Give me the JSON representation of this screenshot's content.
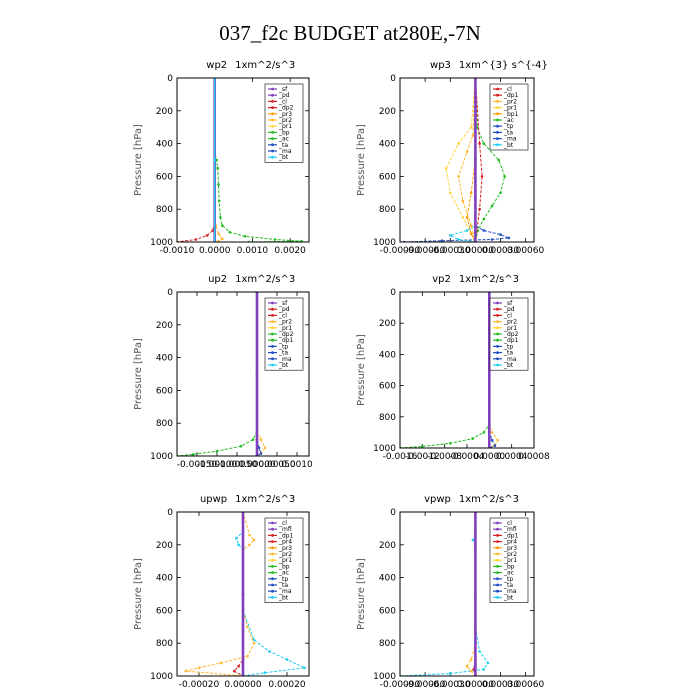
{
  "figure_title": "037_f2c  BUDGET at280E,-7N",
  "chart_data": [
    {
      "type": "line",
      "title": "wp2",
      "units": "1xm^2/s^3",
      "ylabel": "Pressure [hPa]",
      "ylim": [
        1000,
        0
      ],
      "yticks": [
        0,
        200,
        400,
        600,
        800,
        1000
      ],
      "xlim": [
        -0.001,
        0.0025
      ],
      "xtick_values": [
        -0.001,
        0,
        0.001,
        0.002
      ],
      "xtick_labels": [
        "-0.0010",
        "0.0000",
        "0.0010",
        "0.0020"
      ],
      "grid": false,
      "legend_position": "top-right",
      "legend": [
        {
          "label": "_sf",
          "color": "#7f3fbf"
        },
        {
          "label": "_pd",
          "color": "#7f3fbf"
        },
        {
          "label": "_cl",
          "color": "#d42020"
        },
        {
          "label": "_dp2",
          "color": "#d42020"
        },
        {
          "label": "_pr3",
          "color": "#ff9900"
        },
        {
          "label": "_pr2",
          "color": "#ffb833"
        },
        {
          "label": "_pr1",
          "color": "#ffd23c"
        },
        {
          "label": "_bp",
          "color": "#22bb22"
        },
        {
          "label": "_ac",
          "color": "#22bb22"
        },
        {
          "label": "_ta",
          "color": "#1f4fbf"
        },
        {
          "label": "_ma",
          "color": "#1f4fbf"
        },
        {
          "label": "_bt",
          "color": "#22ccee"
        }
      ],
      "series": [
        {
          "color": "#22bb22",
          "x": [
            0,
            0,
            0,
            5e-05,
            8e-05,
            0.0001,
            0.00012,
            0.00015,
            0.0002,
            0.0004,
            0.0008,
            0.0016,
            0.0023,
            0.0009
          ],
          "y": [
            0,
            300,
            450,
            500,
            550,
            650,
            750,
            850,
            900,
            940,
            965,
            985,
            995,
            1000
          ]
        },
        {
          "color": "#ffb833",
          "x": [
            0,
            0,
            0,
            3e-05,
            0.0001,
            0.0002,
            0.0001,
            0
          ],
          "y": [
            0,
            600,
            850,
            900,
            950,
            980,
            995,
            1000
          ]
        },
        {
          "color": "#d42020",
          "x": [
            0,
            0,
            0,
            -5e-05,
            -0.0002,
            -0.0005,
            -0.001
          ],
          "y": [
            0,
            700,
            880,
            930,
            960,
            985,
            1000
          ]
        },
        {
          "color": "#7f3fbf",
          "x": [
            0,
            0,
            0,
            0,
            0
          ],
          "y": [
            0,
            400,
            800,
            950,
            1000
          ]
        },
        {
          "color": "#22ccee",
          "x": [
            0,
            0,
            0
          ],
          "y": [
            0,
            500,
            1000
          ]
        }
      ]
    },
    {
      "type": "line",
      "title": "wp3",
      "units": "1xm^{3} s^{-4}",
      "ylabel": "Pressure [hPa]",
      "ylim": [
        1000,
        0
      ],
      "yticks": [
        0,
        200,
        400,
        600,
        800,
        1000
      ],
      "xlim": [
        -0.0009,
        0.0007
      ],
      "xtick_values": [
        -0.0009,
        -0.0006,
        -0.0003,
        0,
        0.0003,
        0.0006
      ],
      "xtick_labels": [
        "-0.00090",
        "-0.00060",
        "-0.00030",
        "0.00000",
        "0.00030",
        "0.00060"
      ],
      "grid": false,
      "legend_position": "top-right",
      "legend": [
        {
          "label": "_cl",
          "color": "#d42020"
        },
        {
          "label": "_dp1",
          "color": "#d42020"
        },
        {
          "label": "_pr2",
          "color": "#ffb833"
        },
        {
          "label": "_pr1",
          "color": "#ffd23c"
        },
        {
          "label": "_bp1",
          "color": "#ff9900"
        },
        {
          "label": "_ac",
          "color": "#22bb22"
        },
        {
          "label": "_tp",
          "color": "#1f4fbf"
        },
        {
          "label": "_ta",
          "color": "#1f4fbf"
        },
        {
          "label": "_ma",
          "color": "#1f4fbf"
        },
        {
          "label": "_bt",
          "color": "#22ccee"
        }
      ],
      "series": [
        {
          "color": "#22bb22",
          "x": [
            0,
            2e-05,
            0.0001,
            0.00028,
            0.00035,
            0.0003,
            0.0002,
            0.0001,
            3e-05,
            0
          ],
          "y": [
            0,
            300,
            400,
            500,
            600,
            700,
            780,
            860,
            930,
            1000
          ]
        },
        {
          "color": "#ffd23c",
          "x": [
            0,
            -5e-05,
            -0.0002,
            -0.00035,
            -0.0003,
            -0.00015,
            -5e-05,
            0
          ],
          "y": [
            0,
            300,
            400,
            550,
            700,
            850,
            950,
            1000
          ]
        },
        {
          "color": "#ffb833",
          "x": [
            0,
            -3e-05,
            -0.0001,
            -0.0002,
            -0.00015,
            -5e-05,
            0
          ],
          "y": [
            0,
            350,
            450,
            600,
            750,
            900,
            1000
          ]
        },
        {
          "color": "#ff9900",
          "x": [
            0,
            0,
            -5e-05,
            -0.0001,
            -5e-05,
            0
          ],
          "y": [
            0,
            500,
            700,
            850,
            950,
            1000
          ]
        },
        {
          "color": "#d42020",
          "x": [
            0,
            5e-05,
            8e-05,
            5e-05,
            0
          ],
          "y": [
            0,
            400,
            600,
            800,
            1000
          ]
        },
        {
          "color": "#1f4fbf",
          "x": [
            0,
            0,
            0.0001,
            0.0003,
            0.0004,
            0.0002,
            -0.0004,
            -0.00085
          ],
          "y": [
            0,
            900,
            930,
            955,
            975,
            985,
            992,
            1000
          ]
        },
        {
          "color": "#22ccee",
          "x": [
            0,
            0,
            -0.0001,
            -0.0003,
            -0.0002,
            0
          ],
          "y": [
            0,
            900,
            930,
            960,
            985,
            1000
          ]
        },
        {
          "color": "#7f3fbf",
          "x": [
            0,
            0,
            0
          ],
          "y": [
            0,
            500,
            1000
          ]
        }
      ]
    },
    {
      "type": "line",
      "title": "up2",
      "units": "1xm^2/s^3",
      "ylabel": "Pressure [hPa]",
      "ylim": [
        1000,
        0
      ],
      "yticks": [
        0,
        200,
        400,
        600,
        800,
        1000
      ],
      "xlim": [
        -0.002,
        0.0013
      ],
      "xtick_values": [
        -0.0015,
        -0.001,
        -0.0005,
        0,
        0.0005,
        0.001
      ],
      "xtick_labels": [
        "-0.00150",
        "-0.00100",
        "-0.00050",
        "0.00000",
        "0.00050",
        "0.0010"
      ],
      "grid": false,
      "legend_position": "top-right",
      "legend": [
        {
          "label": "_sf",
          "color": "#7f3fbf"
        },
        {
          "label": "_pd",
          "color": "#d42020"
        },
        {
          "label": "_cl",
          "color": "#d42020"
        },
        {
          "label": "_pr2",
          "color": "#ffb833"
        },
        {
          "label": "_pr1",
          "color": "#ffd23c"
        },
        {
          "label": "_dp2",
          "color": "#22bb22"
        },
        {
          "label": "_dp1",
          "color": "#22bb22"
        },
        {
          "label": "_tp",
          "color": "#1f4fbf"
        },
        {
          "label": "_ta",
          "color": "#1f4fbf"
        },
        {
          "label": "_ma",
          "color": "#1f4fbf"
        },
        {
          "label": "_bt",
          "color": "#22ccee"
        }
      ],
      "series": [
        {
          "color": "#22bb22",
          "x": [
            0,
            0,
            0,
            -0.0001,
            -0.0004,
            -0.001,
            -0.0016,
            -0.002
          ],
          "y": [
            0,
            500,
            850,
            900,
            940,
            970,
            990,
            1000
          ]
        },
        {
          "color": "#ffb833",
          "x": [
            0,
            0,
            0.0001,
            0.0002,
            0.0001,
            0
          ],
          "y": [
            0,
            850,
            900,
            950,
            980,
            1000
          ]
        },
        {
          "color": "#1f4fbf",
          "x": [
            0,
            0,
            5e-05,
            0.0001,
            0
          ],
          "y": [
            0,
            900,
            950,
            985,
            1000
          ]
        },
        {
          "color": "#d42020",
          "x": [
            0,
            0,
            0,
            0
          ],
          "y": [
            0,
            500,
            900,
            1000
          ]
        },
        {
          "color": "#7f3fbf",
          "x": [
            0,
            0,
            0
          ],
          "y": [
            0,
            500,
            1000
          ]
        }
      ]
    },
    {
      "type": "line",
      "title": "vp2",
      "units": "1xm^2/s^3",
      "ylabel": "Pressure [hPa]",
      "ylim": [
        1000,
        0
      ],
      "yticks": [
        0,
        200,
        400,
        600,
        800,
        1000
      ],
      "xlim": [
        -0.0016,
        0.0008
      ],
      "xtick_values": [
        -0.0016,
        -0.0012,
        -0.0008,
        -0.0004,
        0,
        0.0004,
        0.0008
      ],
      "xtick_labels": [
        "-0.0016",
        "-0.0012",
        "-0.0008",
        "-0.0004",
        "0.0000",
        "0.0004",
        "0.0008"
      ],
      "grid": false,
      "legend_position": "top-right",
      "legend": [
        {
          "label": "_sf",
          "color": "#7f3fbf"
        },
        {
          "label": "_pd",
          "color": "#d42020"
        },
        {
          "label": "_cl",
          "color": "#d42020"
        },
        {
          "label": "_pr2",
          "color": "#ffb833"
        },
        {
          "label": "_pr1",
          "color": "#ffd23c"
        },
        {
          "label": "_dp2",
          "color": "#22bb22"
        },
        {
          "label": "_dp1",
          "color": "#22bb22"
        },
        {
          "label": "_tp",
          "color": "#1f4fbf"
        },
        {
          "label": "_ta",
          "color": "#1f4fbf"
        },
        {
          "label": "_ma",
          "color": "#1f4fbf"
        },
        {
          "label": "_bt",
          "color": "#22ccee"
        }
      ],
      "series": [
        {
          "color": "#22bb22",
          "x": [
            0,
            0,
            0,
            -0.0001,
            -0.0003,
            -0.0007,
            -0.0012,
            -0.0016
          ],
          "y": [
            0,
            500,
            850,
            900,
            940,
            970,
            990,
            1000
          ]
        },
        {
          "color": "#ffb833",
          "x": [
            0,
            0,
            5e-05,
            0.00015,
            0.0001,
            0
          ],
          "y": [
            0,
            850,
            900,
            950,
            980,
            1000
          ]
        },
        {
          "color": "#1f4fbf",
          "x": [
            0,
            0,
            5e-05,
            0.0001,
            0
          ],
          "y": [
            0,
            900,
            950,
            985,
            1000
          ]
        },
        {
          "color": "#d42020",
          "x": [
            0,
            0,
            0,
            0
          ],
          "y": [
            0,
            500,
            900,
            1000
          ]
        },
        {
          "color": "#7f3fbf",
          "x": [
            0,
            0,
            0
          ],
          "y": [
            0,
            500,
            1000
          ]
        }
      ]
    },
    {
      "type": "line",
      "title": "upwp",
      "units": "1xm^2/s^3",
      "ylabel": "Pressure [hPa]",
      "ylim": [
        1000,
        0
      ],
      "yticks": [
        0,
        200,
        400,
        600,
        800,
        1000
      ],
      "xlim": [
        -0.0003,
        0.0003
      ],
      "xtick_values": [
        -0.0002,
        0,
        0.0002
      ],
      "xtick_labels": [
        "-0.00020",
        "0.00000",
        "0.00020"
      ],
      "grid": false,
      "legend_position": "top-right",
      "legend": [
        {
          "label": "_cl",
          "color": "#7f3fbf"
        },
        {
          "label": "_mfl",
          "color": "#7f3fbf"
        },
        {
          "label": "_dp1",
          "color": "#d42020"
        },
        {
          "label": "_pr4",
          "color": "#d42020"
        },
        {
          "label": "_pr3",
          "color": "#ff9900"
        },
        {
          "label": "_pr2",
          "color": "#ffb833"
        },
        {
          "label": "_pr1",
          "color": "#ffd23c"
        },
        {
          "label": "_bp",
          "color": "#22bb22"
        },
        {
          "label": "_ac",
          "color": "#22bb22"
        },
        {
          "label": "_tp",
          "color": "#1f4fbf"
        },
        {
          "label": "_ta",
          "color": "#1f4fbf"
        },
        {
          "label": "_ma",
          "color": "#1f4fbf"
        },
        {
          "label": "_bt",
          "color": "#22ccee"
        }
      ],
      "series": [
        {
          "color": "#22ccee",
          "x": [
            0,
            0,
            -3e-05,
            -2e-05,
            0,
            0,
            5e-05,
            0.00012,
            0.0002,
            0.00028,
            0.0001,
            0
          ],
          "y": [
            0,
            120,
            160,
            200,
            230,
            600,
            780,
            850,
            900,
            950,
            980,
            1000
          ]
        },
        {
          "color": "#ffb833",
          "x": [
            0,
            3e-05,
            5e-05,
            3e-05,
            0,
            0,
            2e-05,
            5e-05,
            2e-05,
            -0.0001,
            -0.0002,
            -0.00026,
            0
          ],
          "y": [
            0,
            140,
            170,
            200,
            230,
            600,
            700,
            800,
            880,
            920,
            950,
            970,
            1000
          ]
        },
        {
          "color": "#d42020",
          "x": [
            0,
            0,
            0,
            -2e-05,
            -4e-05,
            0
          ],
          "y": [
            0,
            500,
            900,
            940,
            970,
            1000
          ]
        },
        {
          "color": "#7f3fbf",
          "x": [
            0,
            0,
            0
          ],
          "y": [
            0,
            500,
            1000
          ]
        }
      ]
    },
    {
      "type": "line",
      "title": "vpwp",
      "units": "1xm^2/s^3",
      "ylabel": "Pressure [hPa]",
      "ylim": [
        1000,
        0
      ],
      "yticks": [
        0,
        200,
        400,
        600,
        800,
        1000
      ],
      "xlim": [
        -0.0009,
        0.0007
      ],
      "xtick_values": [
        -0.0009,
        -0.0006,
        -0.0003,
        0,
        0.0003,
        0.0006
      ],
      "xtick_labels": [
        "-0.00090",
        "-0.00060",
        "-0.00030",
        "0.00000",
        "0.00030",
        "0.00060"
      ],
      "grid": false,
      "legend_position": "top-right",
      "legend": [
        {
          "label": "_cl",
          "color": "#7f3fbf"
        },
        {
          "label": "_mfl",
          "color": "#7f3fbf"
        },
        {
          "label": "_dp1",
          "color": "#d42020"
        },
        {
          "label": "_pr4",
          "color": "#d42020"
        },
        {
          "label": "_pr3",
          "color": "#ff9900"
        },
        {
          "label": "_pr2",
          "color": "#ffb833"
        },
        {
          "label": "_pr1",
          "color": "#ffd23c"
        },
        {
          "label": "_bp",
          "color": "#22bb22"
        },
        {
          "label": "_ac",
          "color": "#22bb22"
        },
        {
          "label": "_tp",
          "color": "#1f4fbf"
        },
        {
          "label": "_ta",
          "color": "#1f4fbf"
        },
        {
          "label": "_ma",
          "color": "#1f4fbf"
        },
        {
          "label": "_bt",
          "color": "#22ccee"
        }
      ],
      "series": [
        {
          "color": "#22ccee",
          "x": [
            0,
            0,
            -3e-05,
            0,
            0,
            5e-05,
            0.00015,
            0.0001,
            -0.0003,
            -0.0009
          ],
          "y": [
            0,
            140,
            170,
            210,
            700,
            850,
            920,
            960,
            985,
            1000
          ]
        },
        {
          "color": "#ffb833",
          "x": [
            0,
            0,
            -5e-05,
            -0.0001,
            -5e-05,
            0
          ],
          "y": [
            0,
            800,
            900,
            940,
            970,
            1000
          ]
        },
        {
          "color": "#d42020",
          "x": [
            0,
            0,
            -2e-05,
            0
          ],
          "y": [
            0,
            900,
            960,
            1000
          ]
        },
        {
          "color": "#7f3fbf",
          "x": [
            0,
            0,
            0
          ],
          "y": [
            0,
            500,
            1000
          ]
        }
      ]
    }
  ]
}
